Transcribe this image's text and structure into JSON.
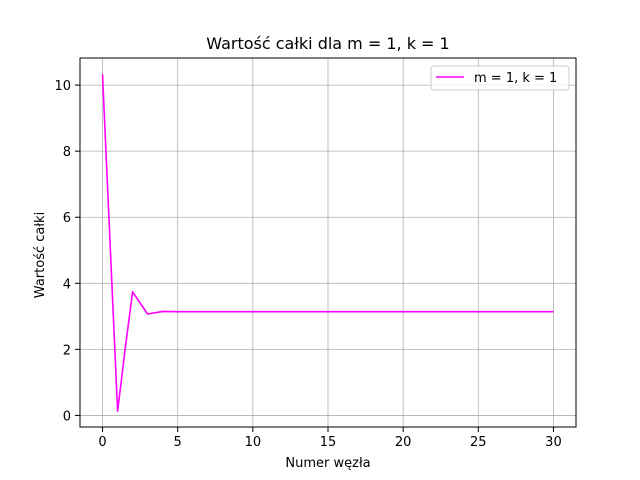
{
  "chart_data": {
    "type": "line",
    "title": "Wartość całki dla m = 1, k = 1",
    "xlabel": "Numer węzła",
    "ylabel": "Wartość całki",
    "xlim": [
      -1.5,
      31.5
    ],
    "ylim": [
      -0.35,
      10.82
    ],
    "xticks": [
      0,
      5,
      10,
      15,
      20,
      25,
      30
    ],
    "yticks": [
      0,
      2,
      4,
      6,
      8,
      10
    ],
    "grid": true,
    "legend_position": "top-right",
    "series": [
      {
        "name": "m = 1, k = 1",
        "color": "#ff00ff",
        "x": [
          0,
          1,
          1.5,
          2,
          3,
          4,
          5,
          6,
          7,
          8,
          9,
          10,
          11,
          12,
          13,
          14,
          15,
          16,
          17,
          18,
          19,
          20,
          21,
          22,
          23,
          24,
          25,
          26,
          27,
          28,
          29,
          30
        ],
        "y": [
          10.33,
          0.13,
          2.0,
          3.74,
          3.07,
          3.15,
          3.14,
          3.14,
          3.14,
          3.14,
          3.14,
          3.14,
          3.14,
          3.14,
          3.14,
          3.14,
          3.14,
          3.14,
          3.14,
          3.14,
          3.14,
          3.14,
          3.14,
          3.14,
          3.14,
          3.14,
          3.14,
          3.14,
          3.14,
          3.14,
          3.14,
          3.14
        ]
      }
    ]
  }
}
